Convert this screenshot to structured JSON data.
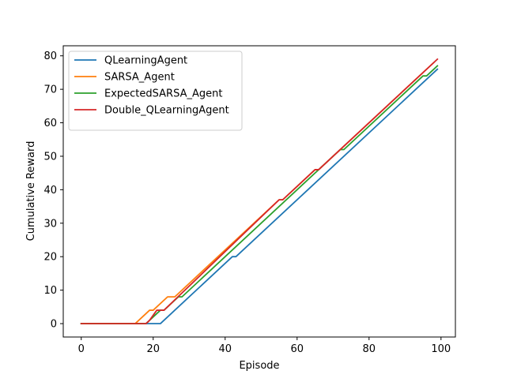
{
  "chart_data": {
    "type": "line",
    "xlabel": "Episode",
    "ylabel": "Cumulative Reward",
    "xlim": [
      -5,
      104
    ],
    "ylim": [
      -4,
      83
    ],
    "xticks": [
      0,
      20,
      40,
      60,
      80,
      100
    ],
    "yticks": [
      0,
      10,
      20,
      30,
      40,
      50,
      60,
      70,
      80
    ],
    "grid": false,
    "legend_position": "top-left",
    "series": [
      {
        "name": "QLearningAgent",
        "color": "#1f77b4",
        "points": [
          [
            0,
            0
          ],
          [
            22,
            0
          ],
          [
            42,
            20
          ],
          [
            43,
            20
          ],
          [
            99,
            76
          ]
        ]
      },
      {
        "name": "SARSA_Agent",
        "color": "#ff7f0e",
        "points": [
          [
            0,
            0
          ],
          [
            15,
            0
          ],
          [
            19,
            4
          ],
          [
            20,
            4
          ],
          [
            24,
            8
          ],
          [
            26,
            8
          ],
          [
            47,
            29
          ],
          [
            55,
            37
          ],
          [
            56,
            37
          ],
          [
            65,
            46
          ],
          [
            66,
            46
          ],
          [
            98,
            78
          ]
        ]
      },
      {
        "name": "ExpectedSARSA_Agent",
        "color": "#2ca02c",
        "points": [
          [
            0,
            0
          ],
          [
            18,
            0
          ],
          [
            22,
            4
          ],
          [
            23,
            4
          ],
          [
            27,
            8
          ],
          [
            28,
            8
          ],
          [
            72,
            52
          ],
          [
            73,
            52
          ],
          [
            95,
            74
          ],
          [
            96,
            74
          ],
          [
            99,
            77
          ]
        ]
      },
      {
        "name": "Double_QLearningAgent",
        "color": "#d62728",
        "points": [
          [
            0,
            0
          ],
          [
            18,
            0
          ],
          [
            19,
            1
          ],
          [
            21,
            4
          ],
          [
            23,
            4
          ],
          [
            55,
            37
          ],
          [
            56,
            37
          ],
          [
            65,
            46
          ],
          [
            66,
            46
          ],
          [
            99,
            79
          ]
        ]
      }
    ]
  }
}
